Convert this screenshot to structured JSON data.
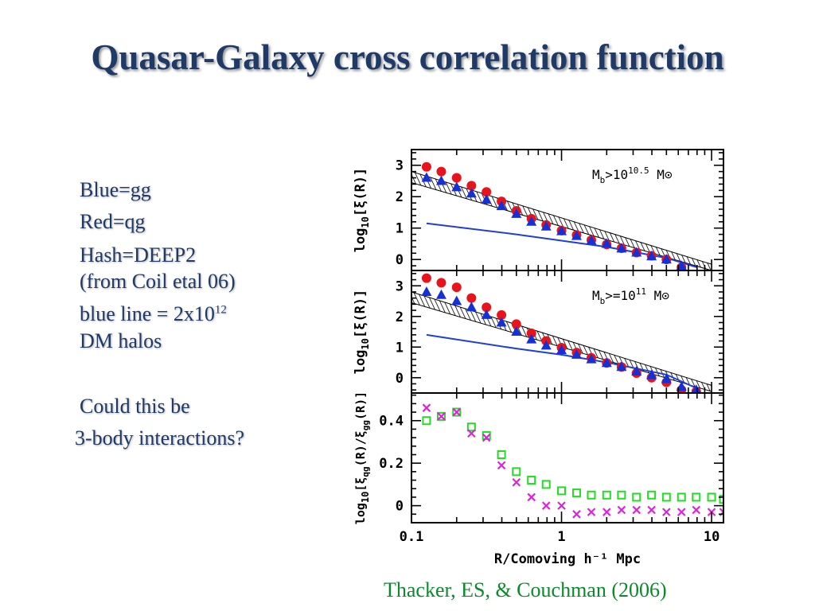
{
  "slide": {
    "title": "Quasar-Galaxy cross correlation function",
    "notes": {
      "blue": "Blue=gg",
      "red": "Red=qg",
      "hash": "Hash=DEEP2",
      "hash_source": "(from Coil etal 06)",
      "blue_line_prefix": "blue line = 2x10",
      "blue_line_exp": "12",
      "blue_line_suffix": "DM halos",
      "question_1": "Could this be",
      "question_2": "3-body interactions?"
    },
    "citation": "Thacker, ES, & Couchman (2006)"
  },
  "chart_data": {
    "type": "scatter",
    "x_scale": "log",
    "xlim": [
      0.1,
      12
    ],
    "xlabel": "R/Comoving h⁻¹ Mpc",
    "x_ticklabels": [
      {
        "value": 0.1,
        "label": "0.1"
      },
      {
        "value": 1,
        "label": "1"
      },
      {
        "value": 10,
        "label": "10"
      }
    ],
    "x": [
      0.126,
      0.158,
      0.2,
      0.251,
      0.316,
      0.398,
      0.5,
      0.63,
      0.79,
      1.0,
      1.26,
      1.58,
      2.0,
      2.51,
      3.16,
      3.98,
      5.0,
      6.3,
      7.9,
      10.0,
      12.0
    ],
    "panels": [
      {
        "name": "top",
        "annotation": {
          "prefix": "M",
          "sub": "b",
          "mid": ">10",
          "sup": "10.5",
          "suffix": " M",
          "symbol": "⊙"
        },
        "ylabel": "log10[ξ(R)]",
        "ylim": [
          -0.35,
          3.5
        ],
        "y_ticklabels": [
          "0",
          "1",
          "2",
          "3"
        ],
        "y_ticks": [
          0,
          1,
          2,
          3
        ],
        "series": [
          {
            "role": "qg",
            "marker": "circle",
            "color": "#e8141c",
            "values": [
              2.95,
              2.8,
              2.6,
              2.35,
              2.15,
              1.85,
              1.55,
              1.3,
              1.1,
              0.92,
              0.78,
              0.62,
              0.48,
              0.36,
              0.22,
              0.12,
              0.0,
              -0.25,
              null,
              null,
              null
            ]
          },
          {
            "role": "gg",
            "marker": "triangle",
            "color": "#1630d8",
            "values": [
              2.6,
              2.5,
              2.3,
              2.1,
              1.9,
              1.7,
              1.45,
              1.2,
              1.05,
              0.9,
              0.75,
              0.6,
              0.5,
              0.35,
              0.22,
              0.1,
              0.0,
              -0.2,
              null,
              null,
              null
            ]
          }
        ],
        "band": {
          "role": "DEEP2",
          "x": [
            0.1,
            10
          ],
          "y_low": [
            2.45,
            -0.35
          ],
          "y_high": [
            2.8,
            -0.15
          ]
        },
        "line": {
          "role": "DM halos",
          "color": "#1f3fd6",
          "x": [
            0.126,
            0.5,
            1.0,
            2.0,
            5.0,
            8.0
          ],
          "y": [
            1.15,
            0.8,
            0.6,
            0.4,
            0.05,
            -0.25
          ]
        }
      },
      {
        "name": "middle",
        "annotation": {
          "prefix": "M",
          "sub": "b",
          "mid": ">=10",
          "sup": "11",
          "suffix": " M",
          "symbol": "⊙"
        },
        "ylabel": "log10[ξ(R)]",
        "ylim": [
          -0.5,
          3.5
        ],
        "y_ticklabels": [
          "0",
          "1",
          "2",
          "3"
        ],
        "y_ticks": [
          0,
          1,
          2,
          3
        ],
        "series": [
          {
            "role": "qg",
            "marker": "circle",
            "color": "#e8141c",
            "values": [
              3.25,
              3.1,
              2.95,
              2.6,
              2.3,
              2.05,
              1.75,
              1.45,
              1.2,
              0.98,
              0.82,
              0.65,
              0.48,
              0.35,
              0.15,
              0.0,
              -0.15,
              -0.4,
              -0.45,
              null,
              null
            ]
          },
          {
            "role": "gg",
            "marker": "triangle",
            "color": "#1630d8",
            "values": [
              2.8,
              2.7,
              2.5,
              2.3,
              2.05,
              1.8,
              1.5,
              1.25,
              1.05,
              0.9,
              0.75,
              0.6,
              0.48,
              0.35,
              0.2,
              0.08,
              -0.05,
              -0.3,
              -0.4,
              null,
              null
            ]
          }
        ],
        "band": {
          "role": "DEEP2",
          "x": [
            0.1,
            10
          ],
          "y_low": [
            2.45,
            -0.45
          ],
          "y_high": [
            2.8,
            -0.25
          ]
        },
        "line": {
          "role": "DM halos",
          "color": "#1f3fd6",
          "x": [
            0.126,
            0.5,
            1.0,
            2.0,
            5.0,
            8.0
          ],
          "y": [
            1.4,
            0.95,
            0.75,
            0.5,
            0.1,
            -0.35
          ]
        }
      },
      {
        "name": "bottom",
        "annotation": null,
        "ylabel": "log10[ξ_qg(R)/ξ_gg(R)]",
        "ylim": [
          -0.08,
          0.53
        ],
        "y_ticklabels": [
          "0",
          "0.2",
          "0.4"
        ],
        "y_ticks": [
          0,
          0.2,
          0.4
        ],
        "series": [
          {
            "role": "ratio-a",
            "marker": "square-open",
            "color": "#22dd22",
            "values": [
              0.4,
              0.42,
              0.44,
              0.37,
              0.33,
              0.24,
              0.16,
              0.12,
              0.1,
              0.07,
              0.06,
              0.05,
              0.05,
              0.05,
              0.04,
              0.05,
              0.04,
              0.04,
              0.04,
              0.04,
              0.03
            ]
          },
          {
            "role": "ratio-b",
            "marker": "cross",
            "color": "#dd22dd",
            "values": [
              0.46,
              0.42,
              0.44,
              0.34,
              0.32,
              0.19,
              0.11,
              0.04,
              0.0,
              0.0,
              -0.04,
              -0.03,
              -0.03,
              -0.02,
              -0.02,
              -0.02,
              -0.03,
              -0.03,
              -0.02,
              -0.03,
              -0.03
            ]
          }
        ]
      }
    ]
  }
}
